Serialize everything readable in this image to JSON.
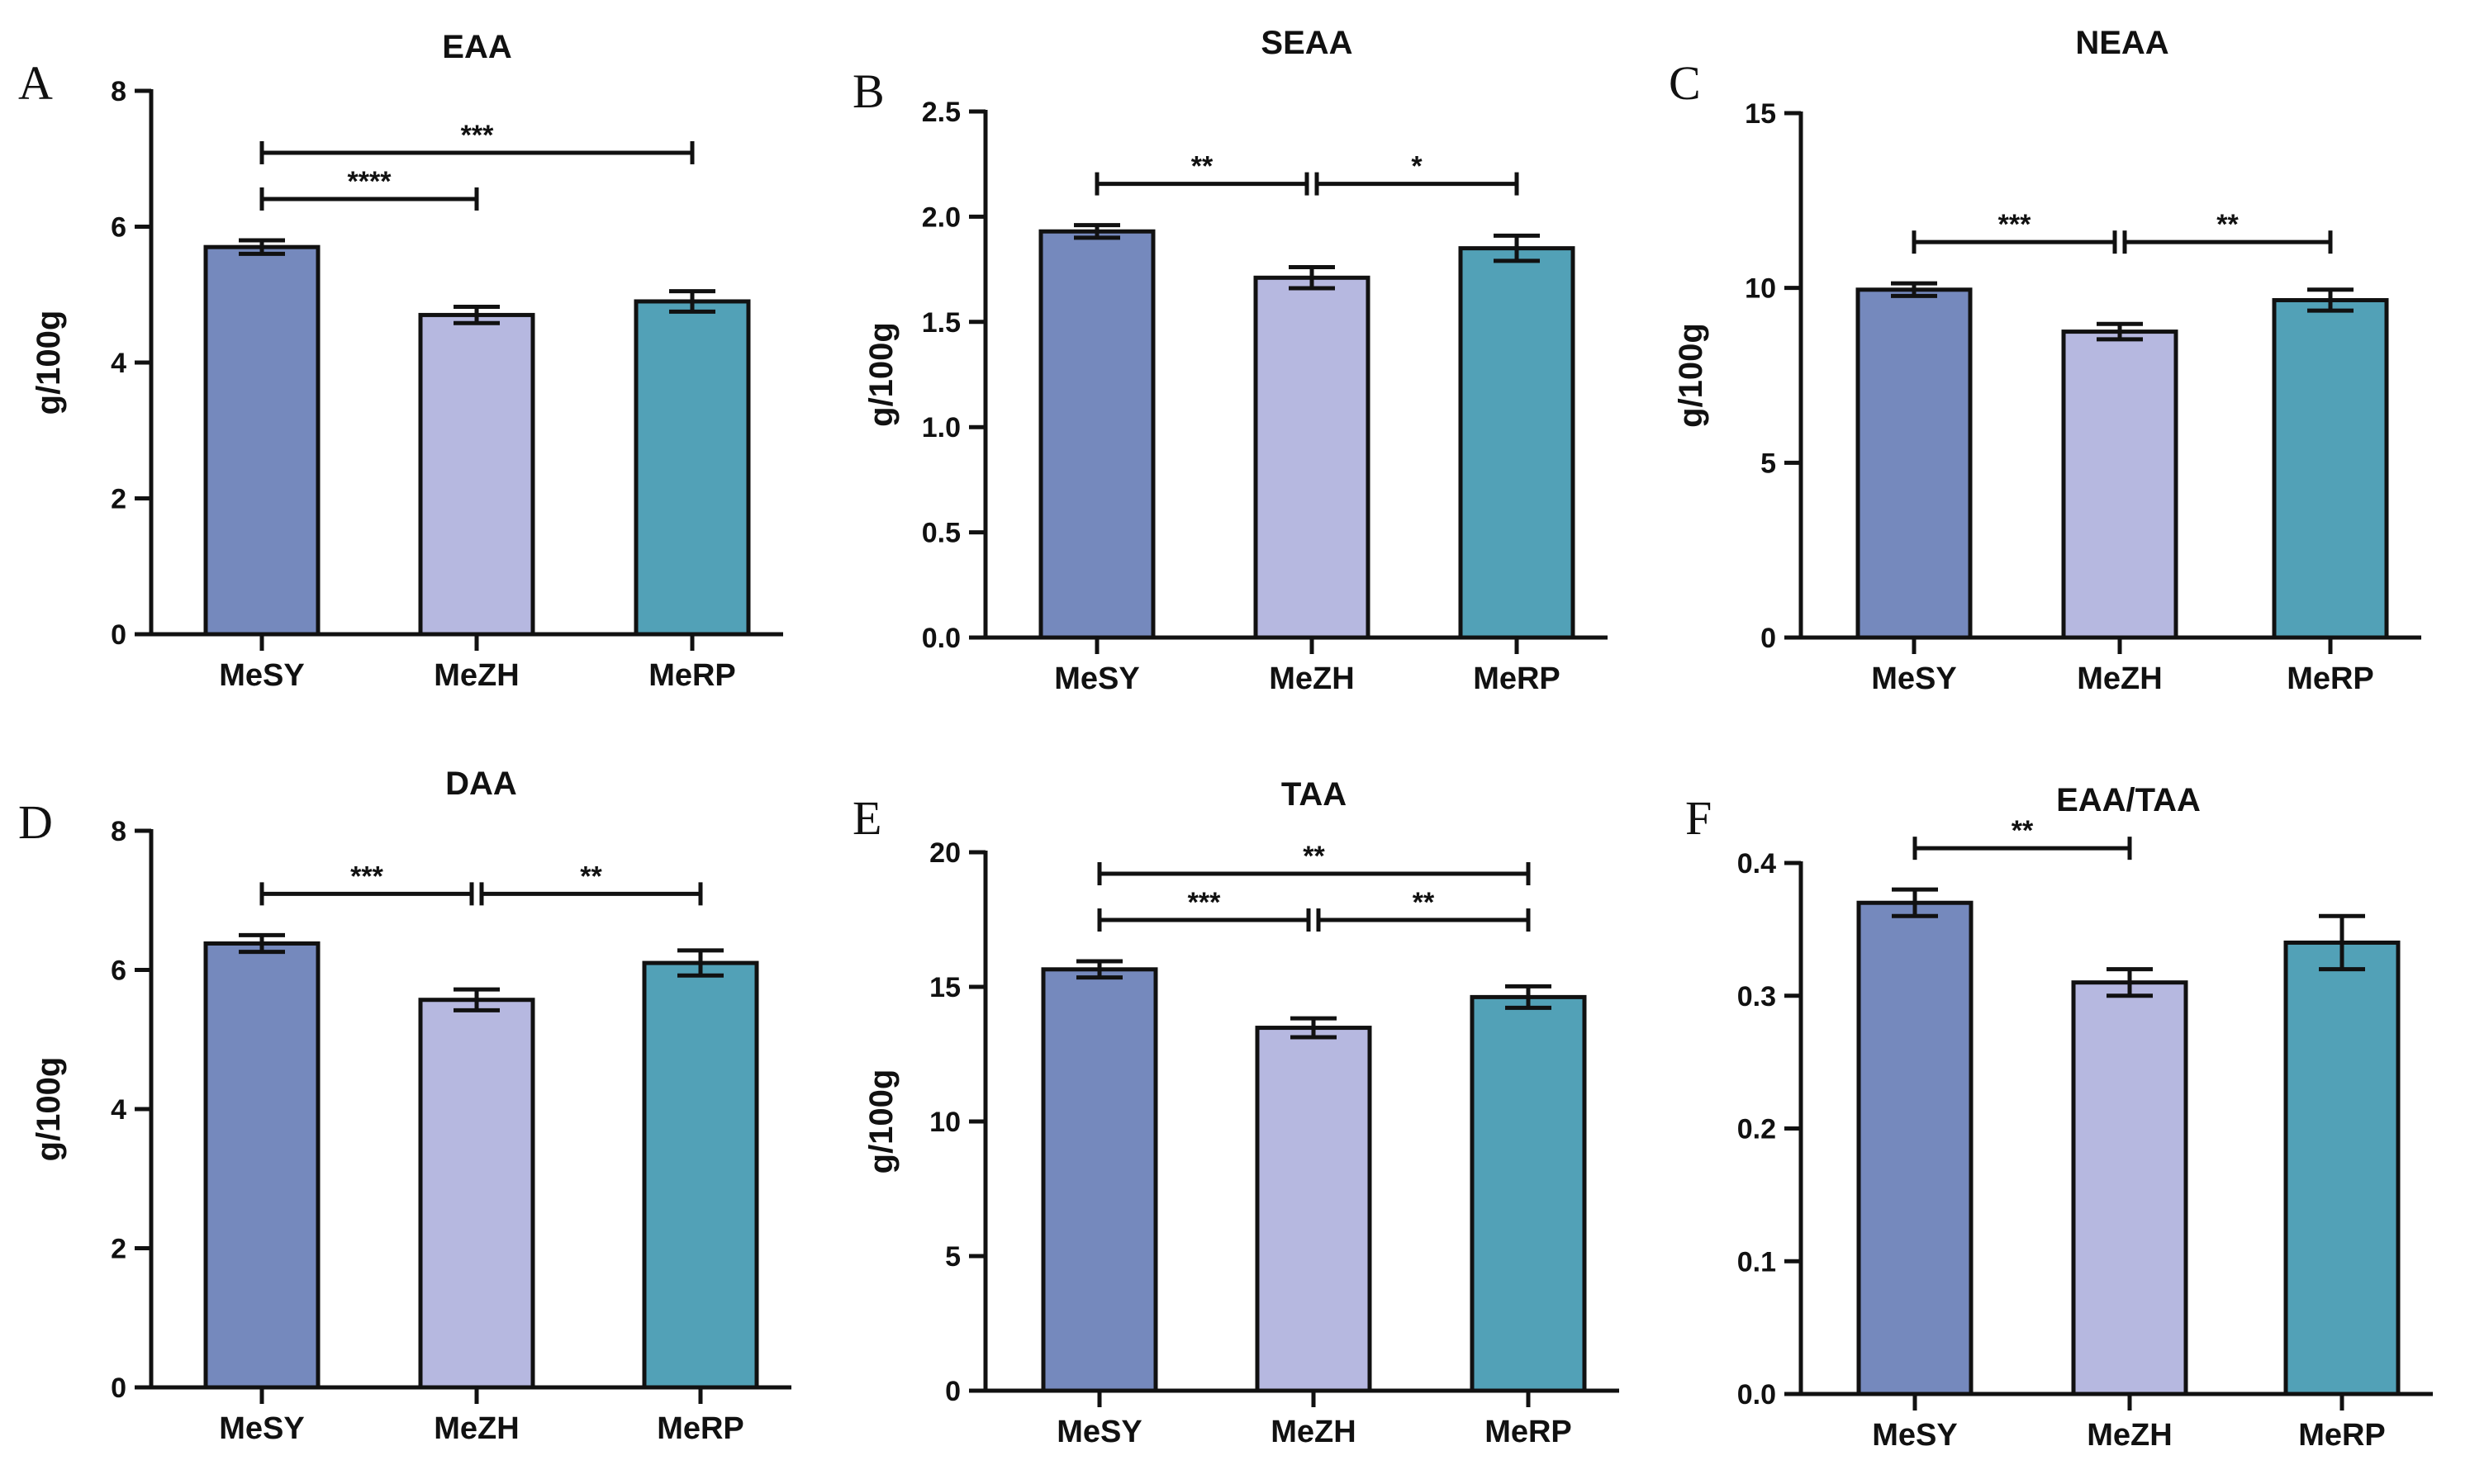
{
  "categories": [
    "MeSY",
    "MeZH",
    "MeRP"
  ],
  "colors": {
    "MeSY": "#7589bd",
    "MeZH": "#b6b8e0",
    "MeRP": "#52a1b7"
  },
  "chart_data": [
    {
      "panel": "A",
      "type": "bar",
      "title": "EAA",
      "ylabel": "g/100g",
      "categories": [
        "MeSY",
        "MeZH",
        "MeRP"
      ],
      "values": [
        5.7,
        4.7,
        4.9
      ],
      "errors": [
        0.1,
        0.12,
        0.15
      ],
      "ylim": [
        0,
        8
      ],
      "yticks": [
        "0",
        "2",
        "4",
        "6",
        "8"
      ],
      "significance": [
        {
          "from": 0,
          "to": 1,
          "label": "****",
          "level": 0
        },
        {
          "from": 0,
          "to": 2,
          "label": "***",
          "level": 1
        }
      ]
    },
    {
      "panel": "B",
      "type": "bar",
      "title": "SEAA",
      "ylabel": "g/100g",
      "categories": [
        "MeSY",
        "MeZH",
        "MeRP"
      ],
      "values": [
        1.93,
        1.71,
        1.85
      ],
      "errors": [
        0.03,
        0.05,
        0.06
      ],
      "ylim": [
        0,
        2.5
      ],
      "yticks": [
        "0.0",
        "0.5",
        "1.0",
        "1.5",
        "2.0",
        "2.5"
      ],
      "significance": [
        {
          "from": 0,
          "to": 1,
          "label": "**",
          "level": 0
        },
        {
          "from": 1,
          "to": 2,
          "label": "*",
          "level": 0
        }
      ]
    },
    {
      "panel": "C",
      "type": "bar",
      "title": "NEAA",
      "ylabel": "g/100g",
      "categories": [
        "MeSY",
        "MeZH",
        "MeRP"
      ],
      "values": [
        9.95,
        8.75,
        9.65
      ],
      "errors": [
        0.18,
        0.22,
        0.3
      ],
      "ylim": [
        0,
        15
      ],
      "yticks": [
        "0",
        "5",
        "10",
        "15"
      ],
      "significance": [
        {
          "from": 0,
          "to": 1,
          "label": "***",
          "level": 0
        },
        {
          "from": 1,
          "to": 2,
          "label": "**",
          "level": 0
        }
      ]
    },
    {
      "panel": "D",
      "type": "bar",
      "title": "DAA",
      "ylabel": "g/100g",
      "categories": [
        "MeSY",
        "MeZH",
        "MeRP"
      ],
      "values": [
        6.38,
        5.57,
        6.1
      ],
      "errors": [
        0.12,
        0.15,
        0.18
      ],
      "ylim": [
        0,
        8
      ],
      "yticks": [
        "0",
        "2",
        "4",
        "6",
        "8"
      ],
      "significance": [
        {
          "from": 0,
          "to": 1,
          "label": "***",
          "level": 0
        },
        {
          "from": 1,
          "to": 2,
          "label": "**",
          "level": 0
        }
      ]
    },
    {
      "panel": "E",
      "type": "bar",
      "title": "TAA",
      "ylabel": "g/100g",
      "categories": [
        "MeSY",
        "MeZH",
        "MeRP"
      ],
      "values": [
        15.65,
        13.48,
        14.62
      ],
      "errors": [
        0.3,
        0.35,
        0.4
      ],
      "ylim": [
        0,
        20
      ],
      "yticks": [
        "0",
        "5",
        "10",
        "15",
        "20"
      ],
      "significance": [
        {
          "from": 0,
          "to": 1,
          "label": "***",
          "level": 0
        },
        {
          "from": 1,
          "to": 2,
          "label": "**",
          "level": 0
        },
        {
          "from": 0,
          "to": 2,
          "label": "**",
          "level": 1
        }
      ]
    },
    {
      "panel": "F",
      "type": "bar",
      "title": "EAA/TAA",
      "ylabel": "",
      "categories": [
        "MeSY",
        "MeZH",
        "MeRP"
      ],
      "values": [
        0.37,
        0.31,
        0.34
      ],
      "errors": [
        0.01,
        0.01,
        0.02
      ],
      "ylim": [
        0,
        0.4
      ],
      "yticks": [
        "0.0",
        "0.1",
        "0.2",
        "0.3",
        "0.4"
      ],
      "significance": [
        {
          "from": 0,
          "to": 1,
          "label": "**",
          "level": 0
        }
      ]
    }
  ]
}
